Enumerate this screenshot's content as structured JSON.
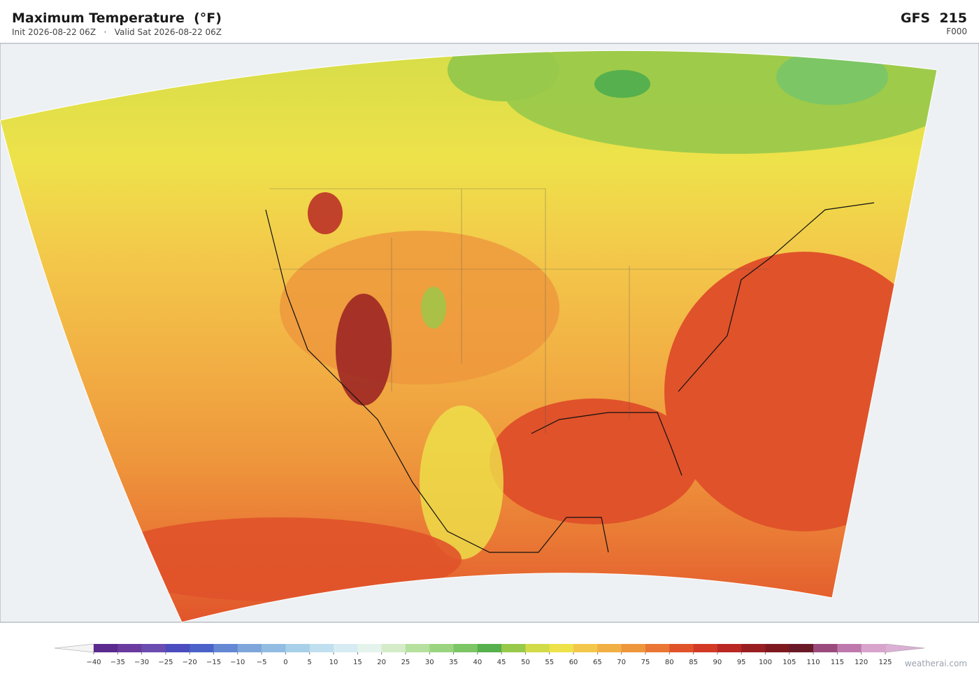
{
  "header": {
    "title": "Maximum Temperature  (°F)",
    "subtitle": "Init 2026-08-22 06Z   ·   Valid Sat 2026-08-22 06Z",
    "model": "GFS  215",
    "step": "F000"
  },
  "colorbar": {
    "ticks": [
      {
        "value": -40,
        "label": "−40"
      },
      {
        "value": -35,
        "label": "−35"
      },
      {
        "value": -30,
        "label": "−30"
      },
      {
        "value": -25,
        "label": "−25"
      },
      {
        "value": -20,
        "label": "−20"
      },
      {
        "value": -15,
        "label": "−15"
      },
      {
        "value": -10,
        "label": "−10"
      },
      {
        "value": -5,
        "label": "−5"
      },
      0,
      5,
      10,
      15,
      20,
      25,
      30,
      35,
      40,
      45,
      50,
      55,
      60,
      65,
      70,
      75,
      80,
      85,
      90,
      95,
      100,
      105,
      110,
      115,
      120,
      125
    ],
    "colors": [
      "#5b2a8e",
      "#6a3a9e",
      "#6b4cb0",
      "#4b4cbf",
      "#4b63c9",
      "#6488d4",
      "#7ea6da",
      "#92bde2",
      "#a8d0e8",
      "#c0e0ef",
      "#d6ecf2",
      "#e4f3ec",
      "#d4ecc8",
      "#b6e09e",
      "#9ad480",
      "#7cc665",
      "#56b04d",
      "#98c94a",
      "#d2dc48",
      "#eee24a",
      "#f3c84a",
      "#f2b044",
      "#ee963c",
      "#e97634",
      "#e0522a",
      "#d33a26",
      "#b92824",
      "#991e22",
      "#7e1a1f",
      "#6a1a26",
      "#9a4a7c",
      "#be78ac",
      "#d8a4cc"
    ],
    "under_color": "#f4f4f4",
    "over_color": "#dcb0d4"
  },
  "footer": {
    "watermark": "weatherai.com"
  }
}
